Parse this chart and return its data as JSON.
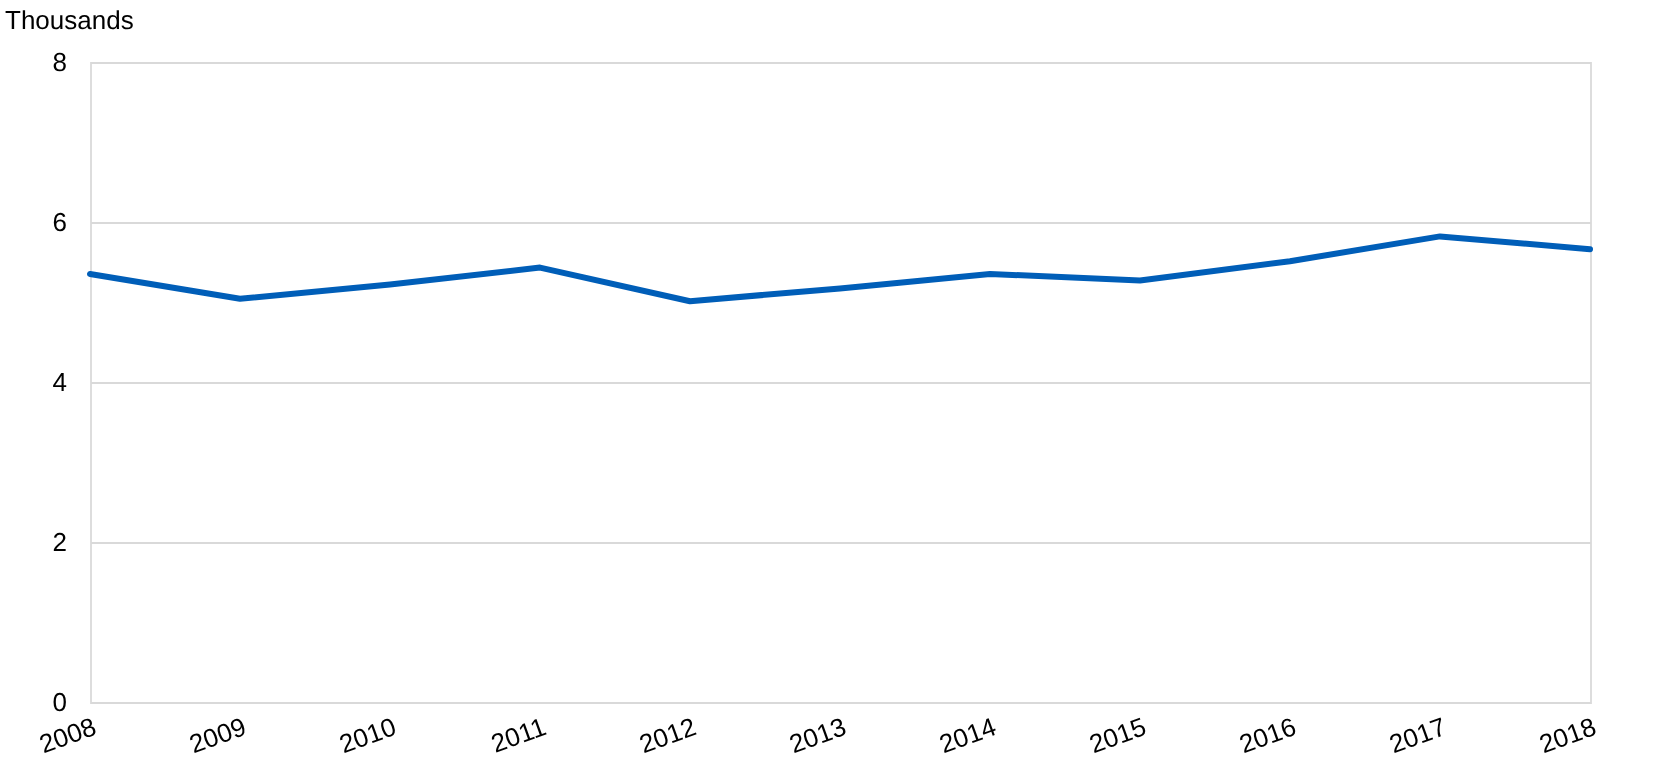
{
  "chart_data": {
    "type": "line",
    "ylabel": "Thousands",
    "x": [
      2008,
      2009,
      2010,
      2011,
      2012,
      2013,
      2014,
      2015,
      2016,
      2017,
      2018
    ],
    "series": [
      {
        "color": "#005eb8",
        "values": [
          5.35,
          5.04,
          5.22,
          5.43,
          5.01,
          5.17,
          5.35,
          5.27,
          5.51,
          5.82,
          5.66
        ]
      }
    ],
    "xlim": [
      2008,
      2018
    ],
    "xticks": [
      2008,
      2009,
      2010,
      2011,
      2012,
      2013,
      2014,
      2015,
      2016,
      2017,
      2018
    ],
    "ylim": [
      0,
      8
    ],
    "yticks": [
      0,
      2,
      4,
      6,
      8
    ],
    "grid": "y",
    "legend": false
  }
}
